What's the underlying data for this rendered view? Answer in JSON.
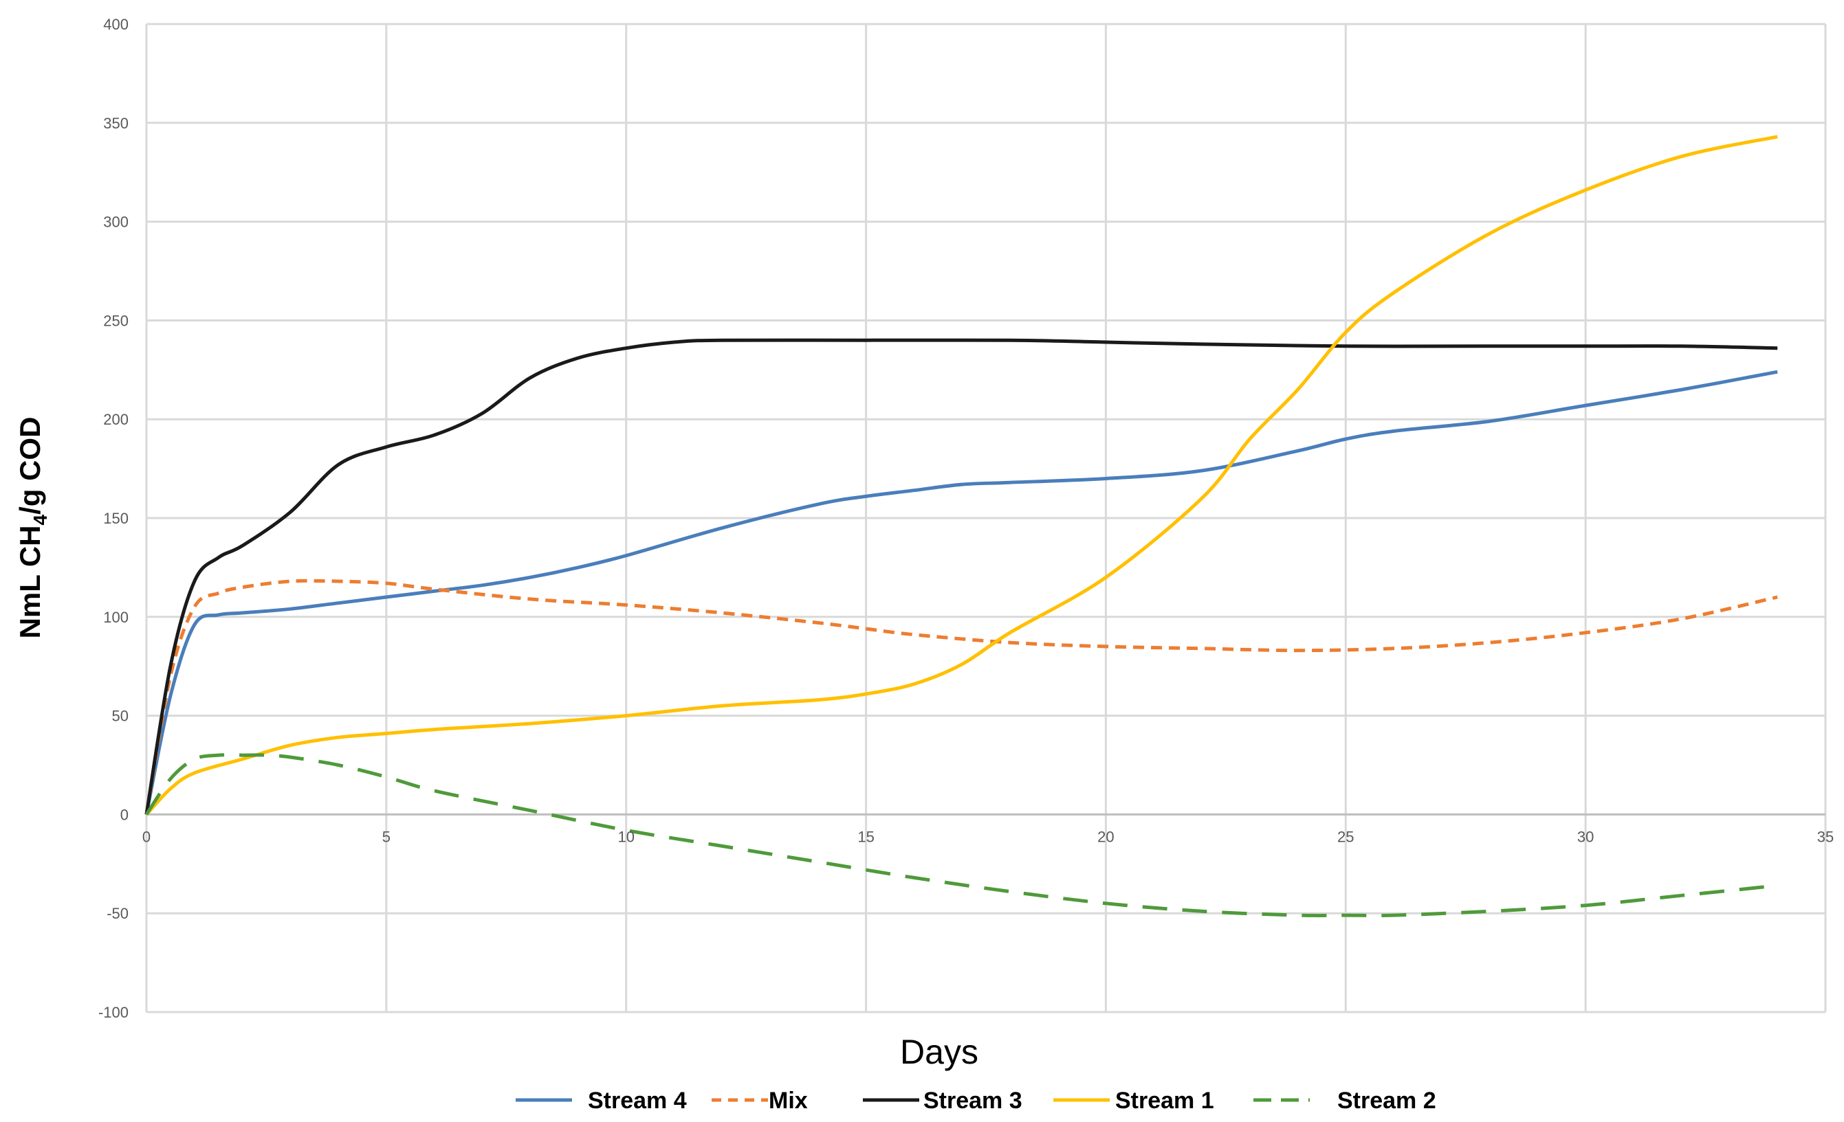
{
  "chart_data": {
    "type": "line",
    "title": "",
    "xlabel": "Days",
    "ylabel_main": "NmL CH",
    "ylabel_sub": "4",
    "ylabel_rest": "/g COD",
    "xlim": [
      0,
      35
    ],
    "ylim": [
      -100,
      400
    ],
    "x_ticks": [
      0,
      5,
      10,
      15,
      20,
      25,
      30,
      35
    ],
    "y_ticks": [
      -100,
      -50,
      0,
      50,
      100,
      150,
      200,
      250,
      300,
      350,
      400
    ],
    "grid": true,
    "legend_position": "bottom",
    "series": [
      {
        "name": "Stream 4",
        "color": "#4a7ebb",
        "dash": "solid",
        "x": [
          0,
          0.5,
          1,
          1.5,
          2,
          3,
          4,
          5,
          6,
          7,
          8,
          9,
          10,
          12,
          14,
          15,
          16,
          17,
          18,
          20,
          22,
          24,
          25,
          26,
          28,
          30,
          32,
          34
        ],
        "y": [
          0,
          60,
          96,
          101,
          102,
          104,
          107,
          110,
          113,
          116,
          120,
          125,
          131,
          145,
          157,
          161,
          164,
          167,
          168,
          170,
          174,
          184,
          190,
          194,
          199,
          207,
          215,
          224
        ]
      },
      {
        "name": "Mix",
        "color": "#ed7d31",
        "dash": "dashed",
        "x": [
          0,
          0.5,
          1,
          1.5,
          2,
          3,
          4,
          5,
          6,
          8,
          10,
          12,
          14,
          15,
          16,
          18,
          20,
          22,
          24,
          26,
          28,
          30,
          32,
          34
        ],
        "y": [
          0,
          70,
          105,
          112,
          115,
          118,
          118,
          117,
          114,
          109,
          106,
          102,
          97,
          94,
          91,
          87,
          85,
          84,
          83,
          84,
          87,
          92,
          99,
          110
        ]
      },
      {
        "name": "Stream 3",
        "color": "#1a1a1a",
        "dash": "solid",
        "x": [
          0,
          0.5,
          1,
          1.5,
          2,
          3,
          4,
          5,
          6,
          7,
          8,
          9,
          10,
          11,
          12,
          15,
          18,
          20,
          22,
          25,
          28,
          30,
          32,
          34
        ],
        "y": [
          0,
          75,
          118,
          130,
          136,
          153,
          177,
          186,
          192,
          203,
          221,
          231,
          236,
          239,
          240,
          240,
          240,
          239,
          238,
          237,
          237,
          237,
          237,
          236
        ]
      },
      {
        "name": "Stream 1",
        "color": "#ffc000",
        "dash": "solid",
        "x": [
          0,
          0.5,
          1,
          2,
          3,
          4,
          5,
          6,
          8,
          10,
          12,
          14,
          15,
          16,
          17,
          18,
          20,
          22,
          23,
          24,
          25,
          26,
          28,
          30,
          32,
          34
        ],
        "y": [
          0,
          13,
          21,
          28,
          35,
          39,
          41,
          43,
          46,
          50,
          55,
          58,
          61,
          66,
          76,
          92,
          120,
          160,
          190,
          215,
          244,
          264,
          294,
          316,
          333,
          343
        ]
      },
      {
        "name": "Stream 2",
        "color": "#4f9a3a",
        "dash": "longdash",
        "x": [
          0,
          0.5,
          1,
          1.5,
          2,
          2.5,
          3,
          4,
          5,
          6,
          8,
          10,
          12,
          14,
          16,
          18,
          20,
          22,
          24,
          25,
          26,
          28,
          30,
          32,
          34
        ],
        "y": [
          0,
          18,
          28,
          30,
          30,
          30,
          29,
          25,
          19,
          12,
          2,
          -8,
          -16,
          -24,
          -32,
          -39,
          -45,
          -49,
          -51,
          -51,
          -51,
          -49,
          -46,
          -41,
          -36
        ]
      }
    ]
  }
}
